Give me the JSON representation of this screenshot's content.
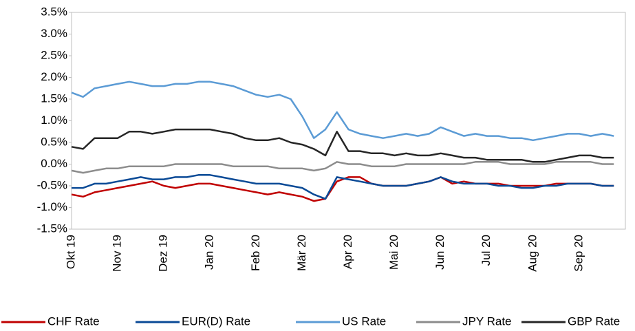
{
  "chart_data": {
    "type": "line",
    "categories": [
      "Okt 19",
      null,
      null,
      null,
      "Nov 19",
      null,
      null,
      null,
      "Dez 19",
      null,
      null,
      null,
      "Jan 20",
      null,
      null,
      null,
      "Feb 20",
      null,
      null,
      null,
      "Mär 20",
      null,
      null,
      null,
      "Apr 20",
      null,
      null,
      null,
      "Mai 20",
      null,
      null,
      null,
      "Jun 20",
      null,
      null,
      null,
      "Jul 20",
      null,
      null,
      null,
      "Aug 20",
      null,
      null,
      null,
      "Sep 20",
      null,
      null,
      null
    ],
    "series": [
      {
        "name": "CHF Rate",
        "color": "#c00000",
        "values": [
          -0.7,
          -0.75,
          -0.65,
          -0.6,
          -0.55,
          -0.5,
          -0.45,
          -0.4,
          -0.5,
          -0.55,
          -0.5,
          -0.45,
          -0.45,
          -0.5,
          -0.55,
          -0.6,
          -0.65,
          -0.7,
          -0.65,
          -0.7,
          -0.75,
          -0.85,
          -0.8,
          -0.4,
          -0.3,
          -0.3,
          -0.45,
          -0.5,
          -0.5,
          -0.5,
          -0.45,
          -0.4,
          -0.3,
          -0.45,
          -0.4,
          -0.45,
          -0.45,
          -0.45,
          -0.5,
          -0.5,
          -0.5,
          -0.5,
          -0.45,
          -0.45,
          -0.45,
          -0.45,
          -0.5,
          -0.5
        ]
      },
      {
        "name": "EUR(D) Rate",
        "color": "#0a4a96",
        "values": [
          -0.55,
          -0.55,
          -0.45,
          -0.45,
          -0.4,
          -0.35,
          -0.3,
          -0.35,
          -0.35,
          -0.3,
          -0.3,
          -0.25,
          -0.25,
          -0.3,
          -0.35,
          -0.4,
          -0.45,
          -0.45,
          -0.45,
          -0.5,
          -0.55,
          -0.7,
          -0.8,
          -0.3,
          -0.35,
          -0.4,
          -0.45,
          -0.5,
          -0.5,
          -0.5,
          -0.45,
          -0.4,
          -0.3,
          -0.4,
          -0.45,
          -0.45,
          -0.45,
          -0.5,
          -0.5,
          -0.55,
          -0.55,
          -0.5,
          -0.5,
          -0.45,
          -0.45,
          -0.45,
          -0.5,
          -0.5
        ]
      },
      {
        "name": "US Rate",
        "color": "#5b9bd5",
        "values": [
          1.65,
          1.55,
          1.75,
          1.8,
          1.85,
          1.9,
          1.85,
          1.8,
          1.8,
          1.85,
          1.85,
          1.9,
          1.9,
          1.85,
          1.8,
          1.7,
          1.6,
          1.55,
          1.6,
          1.5,
          1.1,
          0.6,
          0.8,
          1.2,
          0.8,
          0.7,
          0.65,
          0.6,
          0.65,
          0.7,
          0.65,
          0.7,
          0.85,
          0.75,
          0.65,
          0.7,
          0.65,
          0.65,
          0.6,
          0.6,
          0.55,
          0.6,
          0.65,
          0.7,
          0.7,
          0.65,
          0.7,
          0.65
        ]
      },
      {
        "name": "JPY Rate",
        "color": "#8c8c8c",
        "values": [
          -0.15,
          -0.2,
          -0.15,
          -0.1,
          -0.1,
          -0.05,
          -0.05,
          -0.05,
          -0.05,
          0,
          0,
          0,
          0,
          0,
          -0.05,
          -0.05,
          -0.05,
          -0.05,
          -0.1,
          -0.1,
          -0.1,
          -0.15,
          -0.1,
          0.05,
          0,
          0,
          -0.05,
          -0.05,
          -0.05,
          0,
          0,
          0,
          0,
          0,
          0,
          0.05,
          0.05,
          0.05,
          0,
          0,
          0,
          0,
          0.05,
          0.05,
          0.05,
          0.05,
          0,
          0
        ]
      },
      {
        "name": "GBP Rate",
        "color": "#262626",
        "values": [
          0.4,
          0.35,
          0.6,
          0.6,
          0.6,
          0.75,
          0.75,
          0.7,
          0.75,
          0.8,
          0.8,
          0.8,
          0.8,
          0.75,
          0.7,
          0.6,
          0.55,
          0.55,
          0.6,
          0.5,
          0.45,
          0.35,
          0.2,
          0.75,
          0.3,
          0.3,
          0.25,
          0.25,
          0.2,
          0.25,
          0.2,
          0.2,
          0.25,
          0.2,
          0.15,
          0.15,
          0.1,
          0.1,
          0.1,
          0.1,
          0.05,
          0.05,
          0.1,
          0.15,
          0.2,
          0.2,
          0.15,
          0.15
        ]
      }
    ],
    "ylim": [
      -1.5,
      3.5
    ],
    "yticks": [
      {
        "value": -1.5,
        "label": "-1.5%"
      },
      {
        "value": -1,
        "label": "-1.0%"
      },
      {
        "value": -0.5,
        "label": "-0.5%"
      },
      {
        "value": 0,
        "label": "0.0%"
      },
      {
        "value": 0.5,
        "label": "0.5%"
      },
      {
        "value": 1,
        "label": "1.0%"
      },
      {
        "value": 1.5,
        "label": "1.5%"
      },
      {
        "value": 2,
        "label": "2.0%"
      },
      {
        "value": 2.5,
        "label": "2.5%"
      },
      {
        "value": 3,
        "label": "3.0%"
      },
      {
        "value": 3.5,
        "label": "3.5%"
      }
    ],
    "grid": false,
    "legend": "bottom"
  }
}
